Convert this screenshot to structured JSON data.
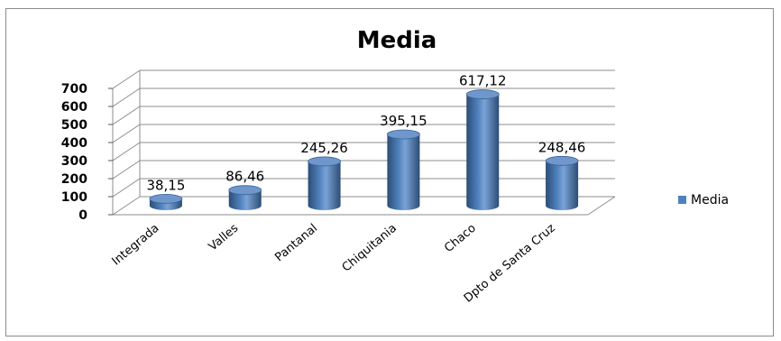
{
  "chart_data": {
    "type": "bar",
    "title": "Media",
    "categories": [
      "Integrada",
      "Valles",
      "Pantanal",
      "Chiquitania",
      "Chaco",
      "Dpto de Santa Cruz"
    ],
    "series": [
      {
        "name": "Media",
        "values": [
          38.15,
          86.46,
          245.26,
          395.15,
          617.12,
          248.46
        ]
      }
    ],
    "data_labels": [
      "38,15",
      "86,46",
      "245,26",
      "395,15",
      "617,12",
      "248,46"
    ],
    "y_ticks": [
      "0",
      "100",
      "200",
      "300",
      "400",
      "500",
      "600",
      "700"
    ],
    "ylim": [
      0,
      700
    ],
    "grid": true,
    "legend_position": "right",
    "bar_shape": "3d-cylinder",
    "colors": {
      "bar": "#4f81bd",
      "bar_dark": "#2c4d75",
      "bar_light": "#b8cce4",
      "grid": "#8c8c8c"
    }
  }
}
